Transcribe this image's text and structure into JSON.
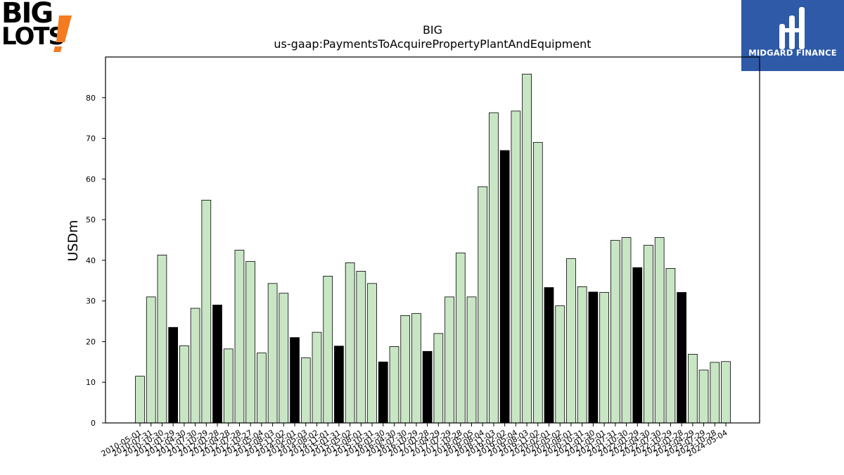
{
  "brand_left": {
    "line1": "BIG",
    "line2": "LOTS",
    "mark": "!"
  },
  "brand_right": {
    "name": "MIDGARD FINANCE"
  },
  "colors": {
    "bar_default": "#c8e6c4",
    "bar_highlight": "#000000",
    "logo_bg": "#2e5aa8",
    "logo_orange": "#f47b20"
  },
  "chart_data": {
    "type": "bar",
    "title": "BIG",
    "subtitle": "us-gaap:PaymentsToAcquirePropertyPlantAndEquipment",
    "ylabel": "USDm",
    "xlabel": "",
    "ylim": [
      0,
      90
    ],
    "yticks": [
      0,
      10,
      20,
      30,
      40,
      50,
      60,
      70,
      80
    ],
    "grid": false,
    "categories": [
      "2010-05-01",
      "2010-07-31",
      "2010-10-30",
      "2011-01-29",
      "2011-04-30",
      "2011-07-30",
      "2011-10-29",
      "2012-01-28",
      "2012-04-28",
      "2012-07-28",
      "2012-10-27",
      "2013-05-04",
      "2013-08-03",
      "2013-11-02",
      "2014-02-01",
      "2014-05-03",
      "2014-08-02",
      "2014-11-01",
      "2015-01-31",
      "2015-05-02",
      "2015-08-01",
      "2015-10-31",
      "2016-01-30",
      "2016-04-30",
      "2016-07-30",
      "2016-10-29",
      "2017-01-28",
      "2017-04-29",
      "2017-07-29",
      "2017-10-28",
      "2018-05-05",
      "2018-08-04",
      "2018-11-03",
      "2019-02-02",
      "2019-05-04",
      "2019-08-03",
      "2019-11-02",
      "2020-02-01",
      "2020-05-02",
      "2020-08-01",
      "2020-10-31",
      "2021-01-30",
      "2021-05-01",
      "2021-07-31",
      "2021-10-30",
      "2022-01-29",
      "2022-04-30",
      "2022-07-30",
      "2022-10-29",
      "2023-01-28",
      "2023-04-29",
      "2023-07-29",
      "2023-10-28",
      "2024-05-04"
    ],
    "tick_labels": [
      "2010-05-01",
      "2010-07-31",
      "2010-10-30",
      "2011-01-29",
      "2011-04-30",
      "2011-07-30",
      "2011-10-29",
      "2012-01-28",
      "2012-04-28",
      "2012-07-28",
      "2012-10-27",
      "2013-05-04",
      "2013-08-03",
      "2013-11-02",
      "2014-02-01",
      "2014-05-03",
      "2014-08-02",
      "2014-11-01",
      "2015-01-31",
      "2015-05-02",
      "2015-08-01",
      "2015-10-31",
      "2016-01-30",
      "2016-04-30",
      "2016-07-30",
      "2016-10-29",
      "2017-01-28",
      "2017-04-29",
      "2017-07-29",
      "2017-10-28",
      "2018-05-05",
      "2018-08-04",
      "2018-11-03",
      "2019-02-02",
      "2019-05-04",
      "2019-08-03",
      "2019-11-02",
      "2020-02-01",
      "2020-05-02",
      "2020-08-01",
      "2020-10-31",
      "2021-01-30",
      "2021-05-01",
      "2021-07-31",
      "2021-10-30",
      "2022-01-29",
      "2022-04-30",
      "2022-07-30",
      "2022-10-29",
      "2023-01-28",
      "2023-04-29",
      "2023-07-29",
      "2023-10-28",
      "2024-05-04"
    ],
    "values": [
      11.5,
      31.0,
      41.3,
      23.5,
      19.0,
      28.2,
      54.8,
      29.0,
      18.2,
      42.5,
      39.7,
      17.2,
      34.3,
      31.9,
      21.0,
      16.0,
      22.3,
      36.1,
      18.9,
      39.4,
      37.3,
      34.3,
      15.0,
      18.8,
      26.4,
      26.9,
      17.6,
      22.0,
      31.0,
      41.8,
      31.0,
      58.1,
      76.3,
      67.0,
      76.7,
      85.8,
      69.0,
      33.3,
      28.8,
      40.4,
      33.5,
      32.2,
      32.1,
      44.9,
      45.6,
      38.2,
      43.7,
      45.6,
      38.0,
      32.1,
      16.9,
      13.0,
      14.9,
      15.1
    ],
    "highlight": [
      false,
      false,
      false,
      true,
      false,
      false,
      false,
      true,
      false,
      false,
      false,
      false,
      false,
      false,
      true,
      false,
      false,
      false,
      true,
      false,
      false,
      false,
      true,
      false,
      false,
      false,
      true,
      false,
      false,
      false,
      false,
      false,
      false,
      true,
      false,
      false,
      false,
      true,
      false,
      false,
      false,
      true,
      false,
      false,
      false,
      true,
      false,
      false,
      false,
      true,
      false,
      false,
      false,
      false
    ]
  }
}
